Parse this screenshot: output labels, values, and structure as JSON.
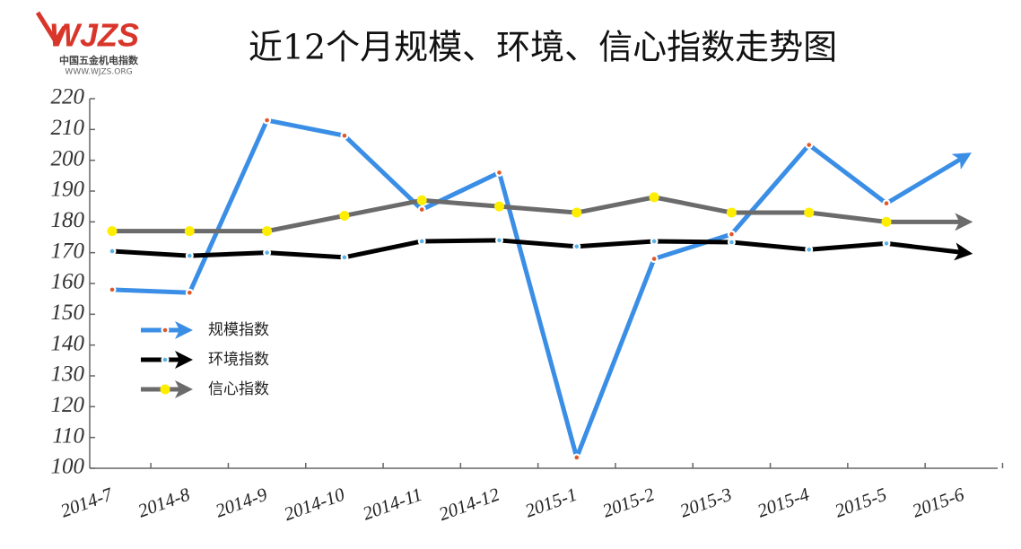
{
  "logo": {
    "brand": "WJZS",
    "name": "中国五金机电指数",
    "url": "WWW.WJZS.ORG"
  },
  "chart_data": {
    "type": "line",
    "title": "近12个月规模、环境、信心指数走势图",
    "categories": [
      "2014-7",
      "2014-8",
      "2014-9",
      "2014-10",
      "2014-11",
      "2014-12",
      "2015-1",
      "2015-2",
      "2015-3",
      "2015-4",
      "2015-5",
      "2015-6"
    ],
    "series": [
      {
        "name": "规模指数",
        "color": "#3a8ee6",
        "marker_color": "#e0582a",
        "values": [
          158,
          157,
          213,
          208,
          184,
          196,
          103.5,
          168,
          176,
          205,
          186,
          201
        ]
      },
      {
        "name": "环境指数",
        "color": "#000000",
        "marker_color": "#5ab4e8",
        "values": [
          170.5,
          169,
          170,
          168.5,
          173.7,
          174,
          172,
          173.7,
          173.4,
          171,
          173,
          170
        ]
      },
      {
        "name": "信心指数",
        "color": "#6b6b6b",
        "marker_color": "#ffee00",
        "values": [
          177,
          177,
          177,
          182,
          187,
          185,
          183,
          188,
          183,
          183,
          180,
          180
        ]
      }
    ],
    "ylim": [
      100,
      220
    ],
    "yticks": [
      100,
      110,
      120,
      130,
      140,
      150,
      160,
      170,
      180,
      190,
      200,
      210,
      220
    ],
    "grid": false,
    "legend": "left"
  }
}
